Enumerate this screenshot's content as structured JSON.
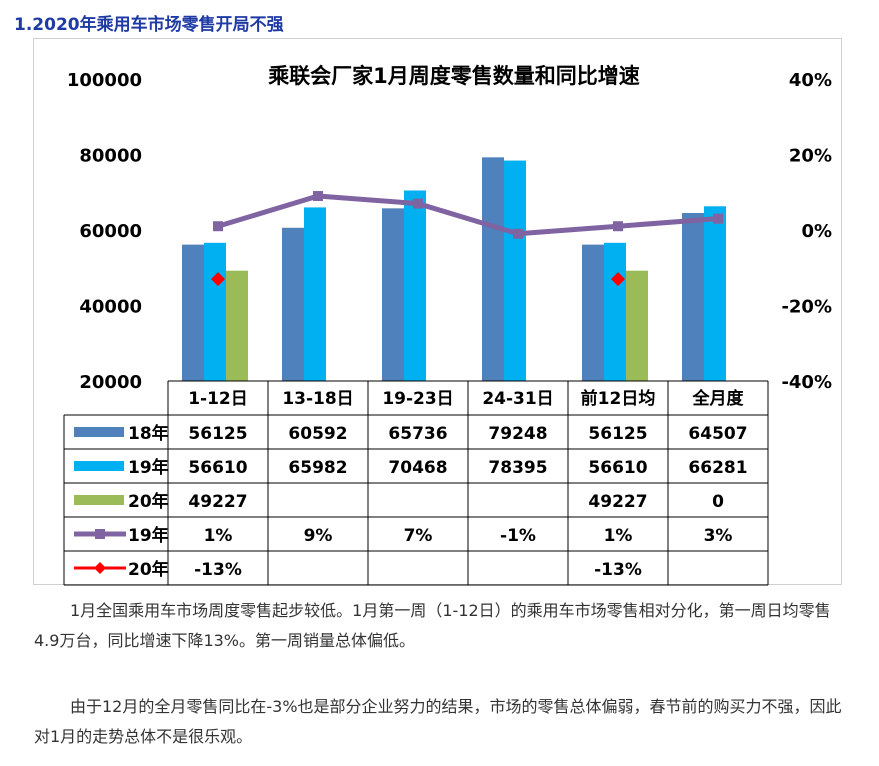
{
  "heading": "1.2020年乘用车市场零售开局不强",
  "chart_data": {
    "type": "bar",
    "title": "乘联会厂家1月周度零售数量和同比增速",
    "categories": [
      "1-12日",
      "13-18日",
      "19-23日",
      "24-31日",
      "前12日均",
      "全月度"
    ],
    "ylim_left": [
      20000,
      100000
    ],
    "yticks_left": [
      20000,
      40000,
      60000,
      80000,
      100000
    ],
    "ytick_labels_left": [
      "20000",
      "40000",
      "60000",
      "80000",
      "100000"
    ],
    "ylim_right": [
      -40,
      40
    ],
    "yticks_right": [
      -40,
      -20,
      0,
      20,
      40
    ],
    "ytick_labels_right": [
      "-40%",
      "-20%",
      "0%",
      "20%",
      "40%"
    ],
    "series": [
      {
        "name": "18年",
        "kind": "bar",
        "color": "#4f81bd",
        "values": [
          56125,
          60592,
          65736,
          79248,
          56125,
          64507
        ],
        "labels": [
          "56125",
          "60592",
          "65736",
          "79248",
          "56125",
          "64507"
        ]
      },
      {
        "name": "19年",
        "kind": "bar",
        "color": "#00b0f0",
        "values": [
          56610,
          65982,
          70468,
          78395,
          56610,
          66281
        ],
        "labels": [
          "56610",
          "65982",
          "70468",
          "78395",
          "56610",
          "66281"
        ]
      },
      {
        "name": "20年",
        "kind": "bar",
        "color": "#9bbb59",
        "values": [
          49227,
          null,
          null,
          null,
          49227,
          0
        ],
        "labels": [
          "49227",
          "",
          "",
          "",
          "49227",
          "0"
        ]
      },
      {
        "name": "19年",
        "kind": "line",
        "axis": "right",
        "color": "#8064a2",
        "values": [
          1,
          9,
          7,
          -1,
          1,
          3
        ],
        "labels": [
          "1%",
          "9%",
          "7%",
          "-1%",
          "1%",
          "3%"
        ]
      },
      {
        "name": "20年",
        "kind": "marker",
        "axis": "right",
        "color": "#ff0000",
        "values": [
          -13,
          null,
          null,
          null,
          -13,
          null
        ],
        "labels": [
          "-13%",
          "",
          "",
          "",
          "-13%",
          ""
        ]
      }
    ]
  },
  "paragraphs": [
    "1月全国乘用车市场周度零售起步较低。1月第一周（1-12日）的乘用车市场零售相对分化，第一周日均零售4.9万台，同比增速下降13%。第一周销量总体偏低。",
    "由于12月的全月零售同比在-3%也是部分企业努力的结果，市场的零售总体偏弱，春节前的购买力不强，因此对1月的走势总体不是很乐观。"
  ]
}
